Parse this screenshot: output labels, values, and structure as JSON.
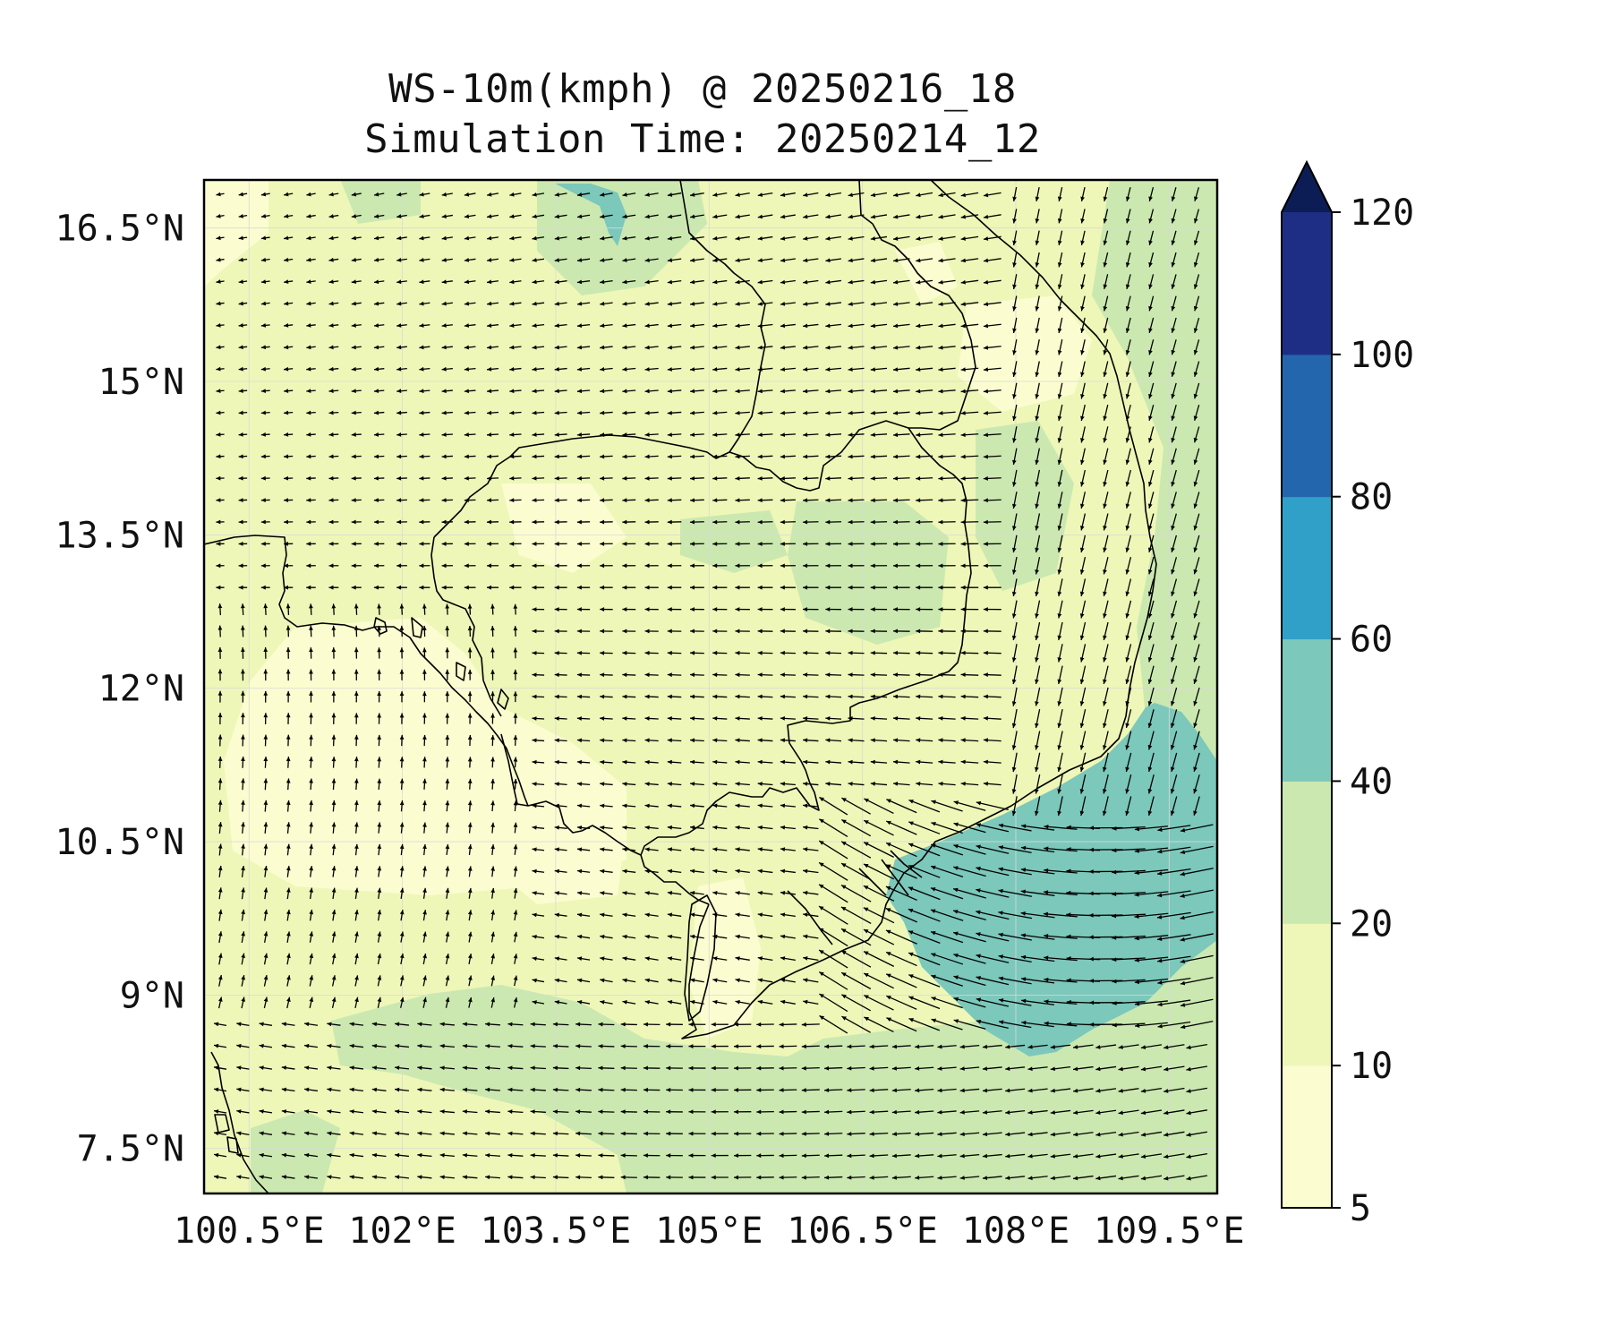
{
  "title": {
    "line1": "WS-10m(kmph) @ 20250216_18",
    "line2": "Simulation Time: 20250214_12"
  },
  "axes": {
    "lon_ticks": [
      "100.5°E",
      "102°E",
      "103.5°E",
      "105°E",
      "106.5°E",
      "108°E",
      "109.5°E"
    ],
    "lon_values": [
      100.5,
      102,
      103.5,
      105,
      106.5,
      108,
      109.5
    ],
    "lat_ticks": [
      "16.5°N",
      "15°N",
      "13.5°N",
      "12°N",
      "10.5°N",
      "9°N",
      "7.5°N"
    ],
    "lat_values": [
      16.5,
      15,
      13.5,
      12,
      10.5,
      9,
      7.5
    ],
    "lon_range": [
      100.06,
      109.97
    ],
    "lat_range": [
      7.06,
      16.97
    ]
  },
  "colorbar": {
    "levels": [
      "5",
      "10",
      "20",
      "40",
      "60",
      "80",
      "100",
      "120"
    ],
    "bounds": [
      5,
      10,
      20,
      40,
      60,
      80,
      100,
      120
    ],
    "colors": [
      "#fbfdd0",
      "#eef7b8",
      "#cbe8b0",
      "#7cc8bb",
      "#30a0c8",
      "#2366ad",
      "#1e2e84"
    ],
    "extend_color": "#0c1d55"
  },
  "chart_data": {
    "type": "heatmap",
    "variable": "WS-10m",
    "unit": "kmph",
    "valid_time": "20250216_18",
    "simulation_time": "20250214_12",
    "speed_regions": [
      {
        "band": "40-60",
        "area": "open sea off southern Vietnam coast, approx 106.8-110°E, 8.5-11.5°N"
      },
      {
        "band": "20-40",
        "area": "Gulf of Thailand south of 9.5°N and eastern sea, scattered over land"
      },
      {
        "band": "10-20",
        "area": "most of land and Gulf of Thailand"
      },
      {
        "band": "5-10",
        "area": "scattered patches over land and inner gulf"
      }
    ],
    "wind_vectors": "arrows show mainly north-easterly to easterly flow over sea, turning southerly over western Gulf of Thailand"
  }
}
